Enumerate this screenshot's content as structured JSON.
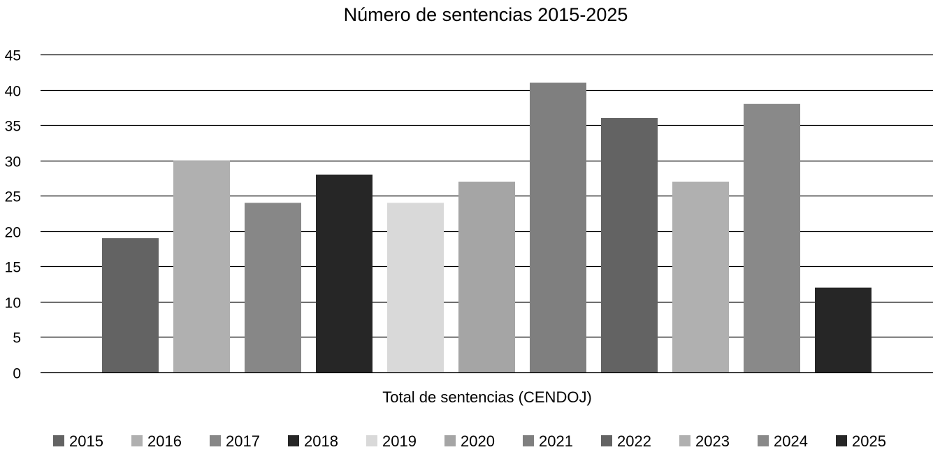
{
  "chart_data": {
    "type": "bar",
    "title": "Número de sentencias 2015-2025",
    "xlabel": "Total de sentencias (CENDOJ)",
    "ylabel": "",
    "ylim": [
      0,
      45
    ],
    "yticks": [
      0,
      5,
      10,
      15,
      20,
      25,
      30,
      35,
      40,
      45
    ],
    "grid": true,
    "legend_position": "bottom",
    "categories": [
      "Total de sentencias (CENDOJ)"
    ],
    "series": [
      {
        "name": "2015",
        "values": [
          19
        ],
        "color": "#636363"
      },
      {
        "name": "2016",
        "values": [
          30
        ],
        "color": "#b0b0b0"
      },
      {
        "name": "2017",
        "values": [
          24
        ],
        "color": "#878787"
      },
      {
        "name": "2018",
        "values": [
          28
        ],
        "color": "#262626"
      },
      {
        "name": "2019",
        "values": [
          24
        ],
        "color": "#d9d9d9"
      },
      {
        "name": "2020",
        "values": [
          27
        ],
        "color": "#a5a5a5"
      },
      {
        "name": "2021",
        "values": [
          41
        ],
        "color": "#7f7f7f"
      },
      {
        "name": "2022",
        "values": [
          36
        ],
        "color": "#636363"
      },
      {
        "name": "2023",
        "values": [
          27
        ],
        "color": "#b0b0b0"
      },
      {
        "name": "2024",
        "values": [
          38
        ],
        "color": "#898989"
      },
      {
        "name": "2025",
        "values": [
          12
        ],
        "color": "#262626"
      }
    ]
  }
}
